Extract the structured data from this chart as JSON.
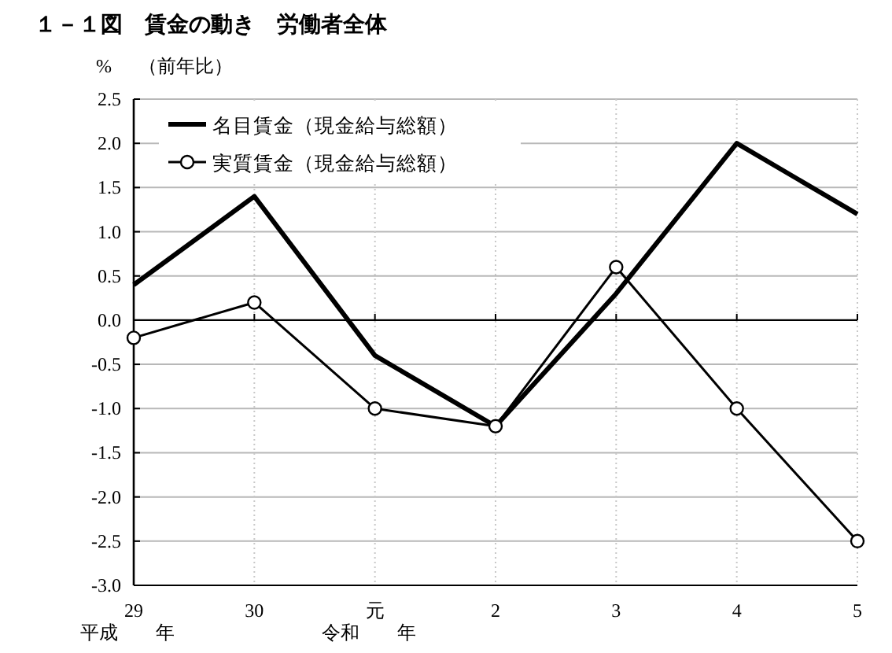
{
  "chart_data": {
    "type": "line",
    "title": "１－１図　賃金の動き　労働者全体",
    "ylabel": "%",
    "subtitle": "（前年比）",
    "categories": [
      "29",
      "30",
      "元",
      "2",
      "3",
      "4",
      "5"
    ],
    "annotations": [
      "平成　　年",
      "令和　　年"
    ],
    "series": [
      {
        "name": "名目賃金（現金給与総額）",
        "color": "#000000",
        "marker": "none",
        "values": [
          0.4,
          1.4,
          -0.4,
          -1.2,
          0.3,
          2.0,
          1.2
        ]
      },
      {
        "name": "実質賃金（現金給与総額）",
        "color": "#000000",
        "marker": "circle",
        "values": [
          -0.2,
          0.2,
          -1.0,
          -1.2,
          0.6,
          -1.0,
          -2.5
        ]
      }
    ],
    "ylim": [
      -3.0,
      2.5
    ],
    "yticks": [
      {
        "value": -3.0,
        "label": "-3.0"
      },
      {
        "value": -2.5,
        "label": "-2.5"
      },
      {
        "value": -2.0,
        "label": "-2.0"
      },
      {
        "value": -1.5,
        "label": "-1.5"
      },
      {
        "value": -1.0,
        "label": "-1.0"
      },
      {
        "value": -0.5,
        "label": "-0.5"
      },
      {
        "value": 0,
        "label": "0.0"
      },
      {
        "value": 0.5,
        "label": "0.5"
      },
      {
        "value": 1.0,
        "label": "1.0"
      },
      {
        "value": 1.5,
        "label": "1.5"
      },
      {
        "value": 2.0,
        "label": "2.0"
      },
      {
        "value": 2.5,
        "label": "2.5"
      }
    ],
    "ref_lines": [
      {
        "axis": "y",
        "value": 0,
        "color": "#000000"
      }
    ],
    "grid": true,
    "legend": "top left",
    "line_style": "solid"
  }
}
